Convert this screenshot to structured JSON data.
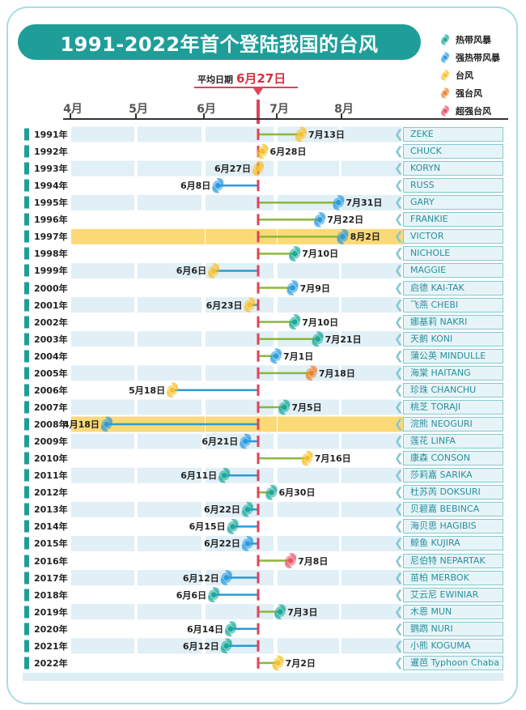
{
  "header": {
    "title": "1991-2022年首个登陆我国的台风"
  },
  "legend": [
    {
      "label": "热带风暴",
      "color": "#1aa99a"
    },
    {
      "label": "强热带风暴",
      "color": "#2b9be0"
    },
    {
      "label": "台风",
      "color": "#f7c12c"
    },
    {
      "label": "强台风",
      "color": "#f07f2a"
    },
    {
      "label": "超强台风",
      "color": "#e8546a"
    }
  ],
  "average": {
    "label": "平均日期",
    "value": "6月27日"
  },
  "colors": {
    "after_line": "#8ab83b",
    "before_line": "#2a9ad6",
    "average": "#e0425a",
    "highlight": "#fbd976",
    "stripe": "#e1eff6"
  },
  "chart_data": {
    "type": "bar",
    "x_tick_labels": [
      "4月",
      "5月",
      "6月",
      "7月",
      "8月"
    ],
    "reference": "6月27日",
    "highlight_years": [
      "1997年",
      "2008年"
    ],
    "rows": [
      {
        "year": "1991年",
        "date": "7月13日",
        "category": "台风",
        "name": "ZEKE"
      },
      {
        "year": "1992年",
        "date": "6月28日",
        "category": "台风",
        "name": "CHUCK"
      },
      {
        "year": "1993年",
        "date": "6月27日",
        "category": "台风",
        "name": "KORYN"
      },
      {
        "year": "1994年",
        "date": "6月8日",
        "category": "强热带风暴",
        "name": "RUSS"
      },
      {
        "year": "1995年",
        "date": "7月31日",
        "category": "强热带风暴",
        "name": "GARY"
      },
      {
        "year": "1996年",
        "date": "7月22日",
        "category": "强热带风暴",
        "name": "FRANKIE"
      },
      {
        "year": "1997年",
        "date": "8月2日",
        "category": "强热带风暴",
        "name": "VICTOR"
      },
      {
        "year": "1998年",
        "date": "7月10日",
        "category": "热带风暴",
        "name": "NICHOLE"
      },
      {
        "year": "1999年",
        "date": "6月6日",
        "category": "台风",
        "name": "MAGGIE"
      },
      {
        "year": "2000年",
        "date": "7月9日",
        "category": "强热带风暴",
        "name": "启德 KAI-TAK"
      },
      {
        "year": "2001年",
        "date": "6月23日",
        "category": "台风",
        "name": "飞燕 CHEBI"
      },
      {
        "year": "2002年",
        "date": "7月10日",
        "category": "热带风暴",
        "name": "娜基莉 NAKRI"
      },
      {
        "year": "2003年",
        "date": "7月21日",
        "category": "热带风暴",
        "name": "天鹅 KONI"
      },
      {
        "year": "2004年",
        "date": "7月1日",
        "category": "强热带风暴",
        "name": "蒲公英 MINDULLE"
      },
      {
        "year": "2005年",
        "date": "7月18日",
        "category": "强台风",
        "name": "海棠 HAITANG"
      },
      {
        "year": "2006年",
        "date": "5月18日",
        "category": "台风",
        "name": "珍珠 CHANCHU"
      },
      {
        "year": "2007年",
        "date": "7月5日",
        "category": "热带风暴",
        "name": "桃芝 TORAJI"
      },
      {
        "year": "2008年",
        "date": "4月18日",
        "category": "强热带风暴",
        "name": "浣熊 NEOGURI"
      },
      {
        "year": "2009年",
        "date": "6月21日",
        "category": "强热带风暴",
        "name": "莲花 LINFA"
      },
      {
        "year": "2010年",
        "date": "7月16日",
        "category": "台风",
        "name": "康森 CONSON"
      },
      {
        "year": "2011年",
        "date": "6月11日",
        "category": "热带风暴",
        "name": "莎莉嘉 SARIKA"
      },
      {
        "year": "2012年",
        "date": "6月30日",
        "category": "热带风暴",
        "name": "杜苏芮 DOKSURI"
      },
      {
        "year": "2013年",
        "date": "6月22日",
        "category": "热带风暴",
        "name": "贝碧嘉 BEBINCA"
      },
      {
        "year": "2014年",
        "date": "6月15日",
        "category": "热带风暴",
        "name": "海贝思 HAGIBIS"
      },
      {
        "year": "2015年",
        "date": "6月22日",
        "category": "强热带风暴",
        "name": "鲸鱼 KUJIRA"
      },
      {
        "year": "2016年",
        "date": "7月8日",
        "category": "超强台风",
        "name": "尼伯特 NEPARTAK"
      },
      {
        "year": "2017年",
        "date": "6月12日",
        "category": "强热带风暴",
        "name": "苗柏 MERBOK"
      },
      {
        "year": "2018年",
        "date": "6月6日",
        "category": "热带风暴",
        "name": "艾云尼 EWINIAR"
      },
      {
        "year": "2019年",
        "date": "7月3日",
        "category": "热带风暴",
        "name": "木恩 MUN"
      },
      {
        "year": "2020年",
        "date": "6月14日",
        "category": "热带风暴",
        "name": "鹦鹉 NURI"
      },
      {
        "year": "2021年",
        "date": "6月12日",
        "category": "热带风暴",
        "name": "小熊 KOGUMA"
      },
      {
        "year": "2022年",
        "date": "7月2日",
        "category": "台风",
        "name": "暹芭 Typhoon Chaba"
      }
    ]
  }
}
